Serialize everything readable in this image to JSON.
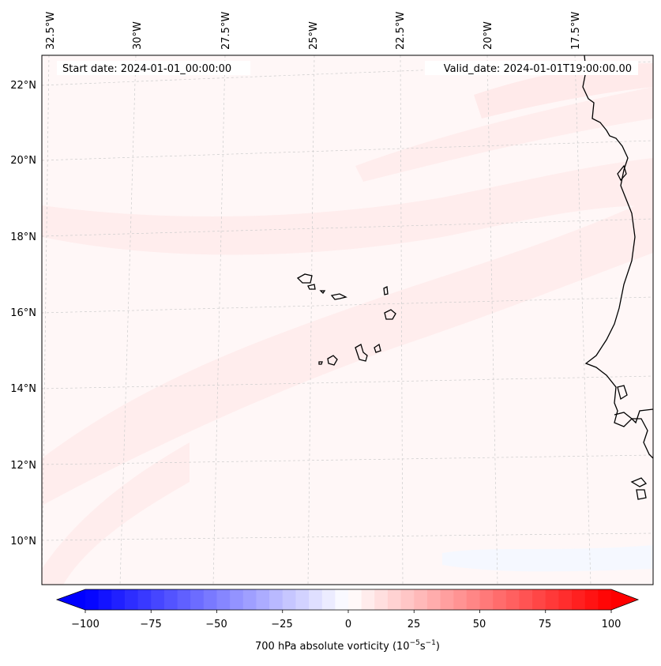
{
  "header": {
    "start_date": "Start date: 2024-01-01_00:00:00",
    "valid_date": "Valid_date: 2024-01-01T19:00:00.00"
  },
  "map": {
    "projection": "Lambert-like conic",
    "lon_labels": [
      "32.5°W",
      "30°W",
      "27.5°W",
      "25°W",
      "22.5°W",
      "20°W",
      "17.5°W"
    ],
    "lat_labels": [
      "22°N",
      "20°N",
      "18°N",
      "16°N",
      "14°N",
      "12°N",
      "10°N"
    ],
    "features": [
      "Cape Verde islands",
      "West African coastline"
    ]
  },
  "colorbar": {
    "ticks": [
      "−100",
      "−75",
      "−50",
      "−25",
      "0",
      "25",
      "50",
      "75",
      "100"
    ],
    "label_prefix": "700 hPa absolute vorticity (10",
    "label_exp1": "−5",
    "label_mid": "s",
    "label_exp2": "−1",
    "label_suffix": ")"
  },
  "colors": {
    "neg": "#0000ff",
    "zero": "#ffffff",
    "pos": "#ff0000"
  },
  "chart_data": {
    "type": "heatmap",
    "variable": "700 hPa absolute vorticity",
    "units": "10^-5 s^-1",
    "colormap": "bwr",
    "vmin": -100,
    "vmax": 100,
    "levels_step": 5,
    "extend": "both"
  }
}
